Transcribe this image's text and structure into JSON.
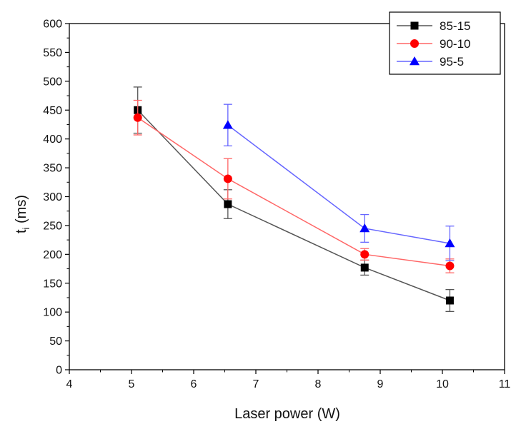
{
  "chart_data": {
    "type": "line",
    "title": "",
    "xlabel": "Laser power (W)",
    "ylabel_main": "t",
    "ylabel_sub": "i",
    "ylabel_unit": " (ms)",
    "xlim": [
      4,
      11
    ],
    "ylim": [
      0,
      600
    ],
    "xticks": [
      4,
      5,
      6,
      7,
      8,
      9,
      10,
      11
    ],
    "yticks": [
      0,
      50,
      100,
      150,
      200,
      250,
      300,
      350,
      400,
      450,
      500,
      550,
      600
    ],
    "grid": false,
    "legend_position": "top-right",
    "series": [
      {
        "name": "85-15",
        "color": "#000000",
        "line_color": "#555555",
        "marker": "square",
        "x": [
          5.1,
          6.55,
          8.75,
          10.12
        ],
        "y": [
          450,
          287,
          177,
          120
        ],
        "err": [
          40,
          25,
          13,
          19
        ]
      },
      {
        "name": "90-10",
        "color": "#ff0000",
        "line_color": "#ff6666",
        "marker": "circle",
        "x": [
          5.1,
          6.55,
          8.75,
          10.12
        ],
        "y": [
          437,
          331,
          200,
          180
        ],
        "err": [
          30,
          35,
          10,
          12
        ]
      },
      {
        "name": "95-5",
        "color": "#0000ff",
        "line_color": "#6666ff",
        "marker": "triangle",
        "x": [
          6.55,
          8.75,
          10.12
        ],
        "y": [
          424,
          245,
          219
        ],
        "err": [
          36,
          24,
          30
        ]
      }
    ]
  }
}
